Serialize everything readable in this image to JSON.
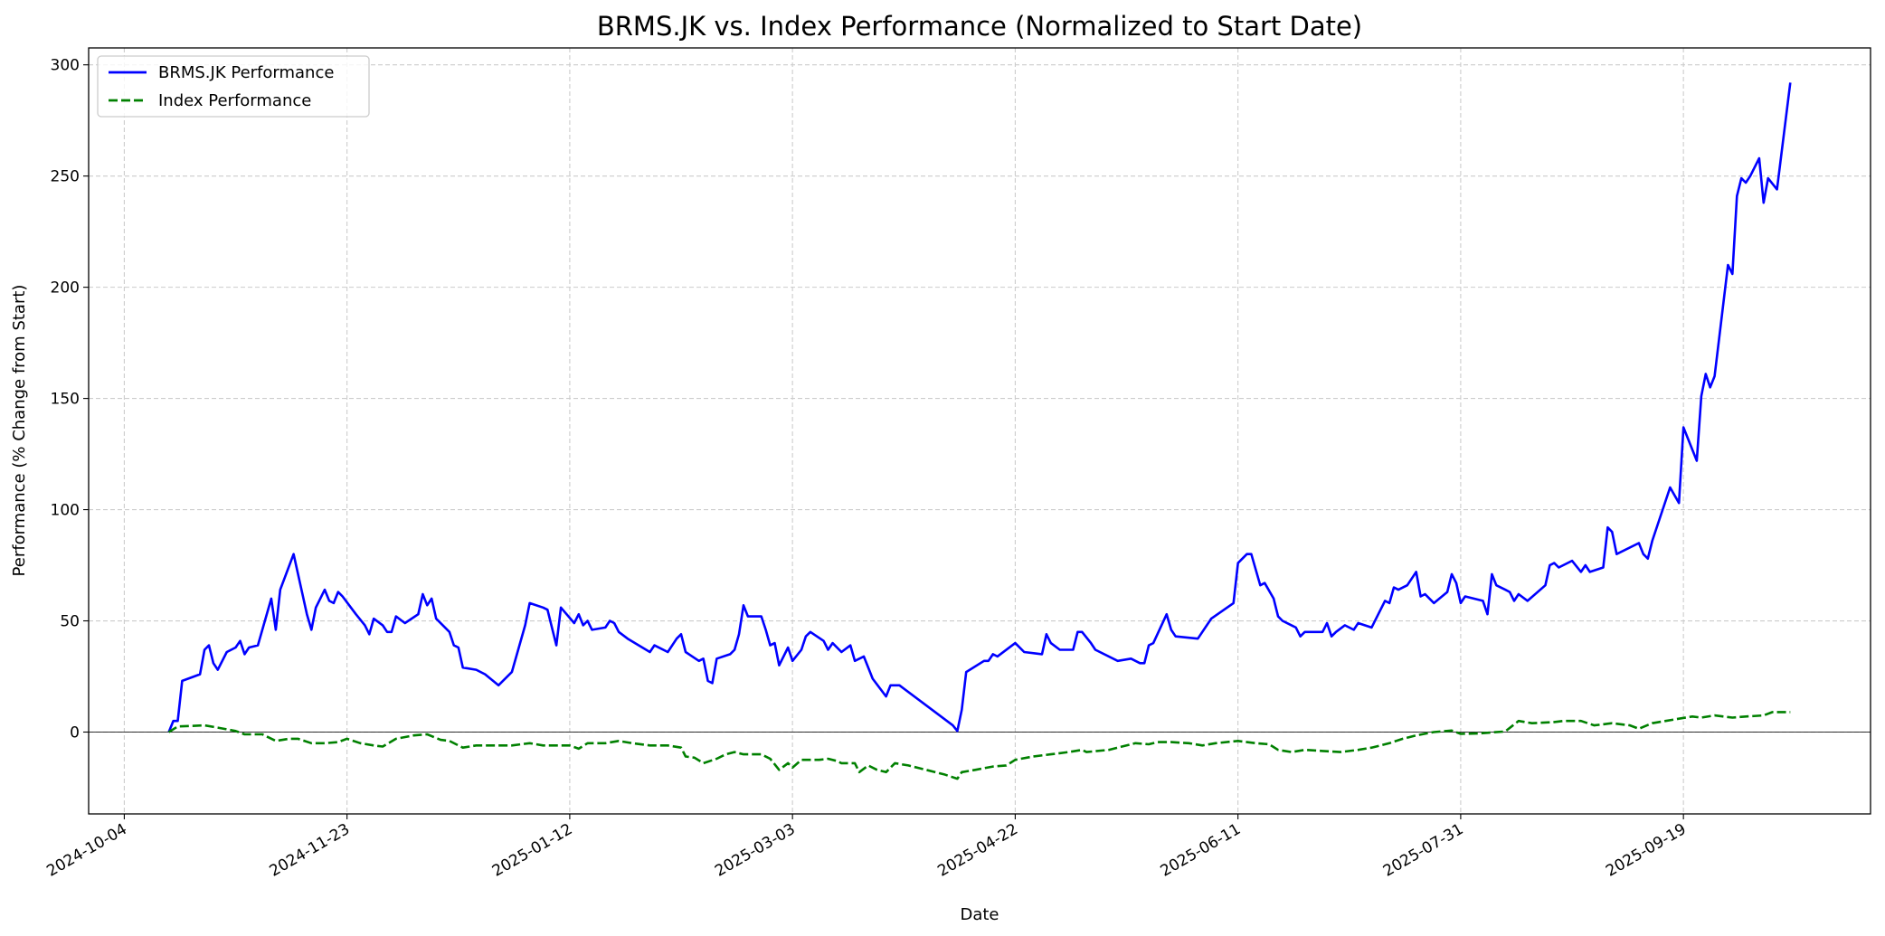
{
  "chart_data": {
    "type": "line",
    "title": "BRMS.JK vs. Index Performance (Normalized to Start Date)",
    "xlabel": "Date",
    "ylabel": "Performance (% Change from Start)",
    "x_unit": "days since 2024-10-04",
    "xlim": [
      -8,
      392
    ],
    "ylim": [
      -36.8,
      307.6
    ],
    "grid": true,
    "legend_position": "top-left",
    "reference_line_y": 0,
    "x_ticks": [
      {
        "value": 0,
        "label": "2024-10-04"
      },
      {
        "value": 50,
        "label": "2024-11-23"
      },
      {
        "value": 100,
        "label": "2025-01-12"
      },
      {
        "value": 150,
        "label": "2025-03-03"
      },
      {
        "value": 200,
        "label": "2025-04-22"
      },
      {
        "value": 250,
        "label": "2025-06-11"
      },
      {
        "value": 300,
        "label": "2025-07-31"
      },
      {
        "value": 350,
        "label": "2025-09-19"
      }
    ],
    "y_ticks": [
      {
        "value": 0,
        "label": "0"
      },
      {
        "value": 50,
        "label": "50"
      },
      {
        "value": 100,
        "label": "100"
      },
      {
        "value": 150,
        "label": "150"
      },
      {
        "value": 200,
        "label": "200"
      },
      {
        "value": 250,
        "label": "250"
      },
      {
        "value": 300,
        "label": "300"
      }
    ],
    "series": [
      {
        "name": "BRMS.JK Performance",
        "color": "#0000ff",
        "style": "solid",
        "x": [
          10,
          11,
          12,
          13,
          17,
          18,
          19,
          20,
          21,
          23,
          24,
          25,
          26,
          27,
          28,
          30,
          33,
          34,
          35,
          38,
          40,
          41,
          42,
          43,
          45,
          46,
          47,
          48,
          49,
          52,
          54,
          55,
          56,
          58,
          59,
          60,
          61,
          63,
          66,
          67,
          68,
          69,
          70,
          73,
          74,
          75,
          76,
          79,
          81,
          84,
          87,
          90,
          91,
          94,
          95,
          96,
          97,
          98,
          101,
          102,
          103,
          104,
          105,
          108,
          109,
          110,
          111,
          113,
          118,
          119,
          122,
          124,
          125,
          126,
          129,
          130,
          131,
          132,
          133,
          136,
          137,
          138,
          139,
          140,
          143,
          144,
          145,
          146,
          147,
          149,
          150,
          152,
          153,
          154,
          157,
          158,
          159,
          161,
          163,
          164,
          166,
          168,
          171,
          172,
          174,
          186,
          187,
          188,
          189,
          193,
          194,
          195,
          196,
          200,
          202,
          206,
          207,
          208,
          210,
          213,
          214,
          215,
          217,
          218,
          223,
          226,
          228,
          229,
          230,
          231,
          234,
          235,
          236,
          241,
          244,
          249,
          250,
          252,
          253,
          255,
          256,
          258,
          259,
          260,
          262,
          263,
          264,
          265,
          269,
          270,
          271,
          272,
          274,
          276,
          277,
          280,
          283,
          284,
          285,
          286,
          288,
          290,
          291,
          292,
          293,
          294,
          297,
          298,
          299,
          300,
          301,
          305,
          306,
          307,
          308,
          310,
          311,
          312,
          313,
          315,
          319,
          320,
          321,
          322,
          325,
          327,
          328,
          329,
          332,
          333,
          334,
          335,
          340,
          341,
          342,
          343,
          347,
          349,
          350,
          353,
          354,
          355,
          356,
          357,
          360,
          361,
          362,
          363,
          364,
          365,
          367,
          368,
          369,
          371,
          374
        ],
        "y": [
          0,
          5,
          5,
          23,
          26,
          37,
          39,
          31,
          28,
          36,
          37,
          38,
          41,
          35,
          38,
          39,
          60,
          46,
          64,
          80,
          62,
          53,
          46,
          56,
          64,
          59,
          58,
          63,
          61,
          53,
          48,
          44,
          51,
          48,
          45,
          45,
          52,
          49,
          53,
          62,
          57,
          60,
          51,
          45,
          39,
          38,
          29,
          28,
          26,
          21,
          27,
          48,
          58,
          56,
          55,
          47,
          39,
          56,
          49,
          53,
          48,
          50,
          46,
          47,
          50,
          49,
          45,
          42,
          36,
          39,
          36,
          42,
          44,
          36,
          32,
          33,
          23,
          22,
          33,
          35,
          37,
          44,
          57,
          52,
          52,
          46,
          39,
          40,
          30,
          38,
          32,
          37,
          43,
          45,
          41,
          37,
          40,
          36,
          39,
          32,
          34,
          24,
          16,
          21,
          21,
          3,
          0.5,
          10,
          27,
          32,
          32,
          35,
          34,
          40,
          36,
          35,
          44,
          40,
          37,
          37,
          45,
          45,
          40,
          37,
          32,
          33,
          31,
          31,
          39,
          40,
          53,
          46,
          43,
          42,
          51,
          58,
          76,
          80,
          80,
          66,
          67,
          60,
          52,
          50,
          48,
          47,
          43,
          45,
          45,
          49,
          43,
          45,
          48,
          46,
          49,
          47,
          59,
          58,
          65,
          64,
          66,
          72,
          61,
          62,
          60,
          58,
          63,
          71,
          67,
          58,
          61,
          59,
          53,
          71,
          66,
          64,
          63,
          59,
          62,
          59,
          66,
          75,
          76,
          74,
          77,
          72,
          75,
          72,
          74,
          92,
          90,
          80,
          85,
          80,
          78,
          86,
          110,
          103,
          137,
          122,
          151,
          161,
          155,
          160,
          210,
          206,
          241,
          249,
          247,
          250,
          258,
          238,
          249,
          244,
          292
        ]
      },
      {
        "name": "Index Performance",
        "color": "#008000",
        "style": "dashed",
        "x": [
          10,
          12,
          18,
          21,
          25,
          27,
          31,
          34,
          37,
          39,
          42,
          45,
          48,
          50,
          53,
          56,
          58,
          61,
          65,
          68,
          71,
          73,
          76,
          79,
          83,
          87,
          91,
          94,
          98,
          100,
          102,
          104,
          108,
          111,
          114,
          118,
          122,
          125,
          126,
          128,
          130,
          133,
          135,
          137,
          139,
          143,
          145,
          147,
          149,
          150,
          152,
          156,
          158,
          160,
          161,
          164,
          165,
          167,
          169,
          171,
          173,
          176,
          180,
          184,
          187,
          188,
          191,
          195,
          198,
          200,
          204,
          208,
          212,
          215,
          216,
          221,
          223,
          227,
          230,
          232,
          235,
          239,
          242,
          245,
          250,
          254,
          257,
          259,
          262,
          265,
          269,
          273,
          277,
          280,
          284,
          287,
          290,
          294,
          298,
          300,
          304,
          310,
          313,
          316,
          321,
          323,
          327,
          330,
          334,
          338,
          340,
          343,
          346,
          349,
          352,
          354,
          357,
          361,
          364,
          368,
          370,
          374
        ],
        "y": [
          0,
          2.5,
          3,
          2,
          0.5,
          -1,
          -1,
          -4,
          -3,
          -3,
          -5,
          -5,
          -4.5,
          -3,
          -5,
          -6,
          -6.5,
          -3,
          -1.5,
          -1,
          -3.5,
          -4,
          -7,
          -6,
          -6,
          -6,
          -5,
          -6,
          -6,
          -6,
          -7.5,
          -5,
          -5,
          -4,
          -5,
          -6,
          -6,
          -7,
          -11,
          -11.5,
          -14,
          -12,
          -10,
          -9,
          -10,
          -10,
          -12,
          -17,
          -14,
          -16,
          -12.5,
          -12.5,
          -12,
          -13,
          -14,
          -14,
          -18,
          -15,
          -17,
          -18,
          -14,
          -15,
          -17,
          -19,
          -21,
          -18,
          -17,
          -15.5,
          -15,
          -12.5,
          -11,
          -10,
          -9,
          -8,
          -9,
          -8,
          -7,
          -5,
          -5.5,
          -4.5,
          -4.5,
          -5,
          -6,
          -5,
          -4,
          -5,
          -5.5,
          -8,
          -9,
          -8,
          -8.5,
          -9,
          -8,
          -7,
          -5,
          -3,
          -1.5,
          0,
          0.7,
          -0.8,
          -0.6,
          0.3,
          5,
          4,
          4.5,
          5,
          5,
          3,
          4,
          3,
          1.5,
          4,
          5,
          6,
          7,
          6.5,
          7.5,
          6.5,
          7,
          7.5,
          9,
          9
        ]
      }
    ]
  }
}
